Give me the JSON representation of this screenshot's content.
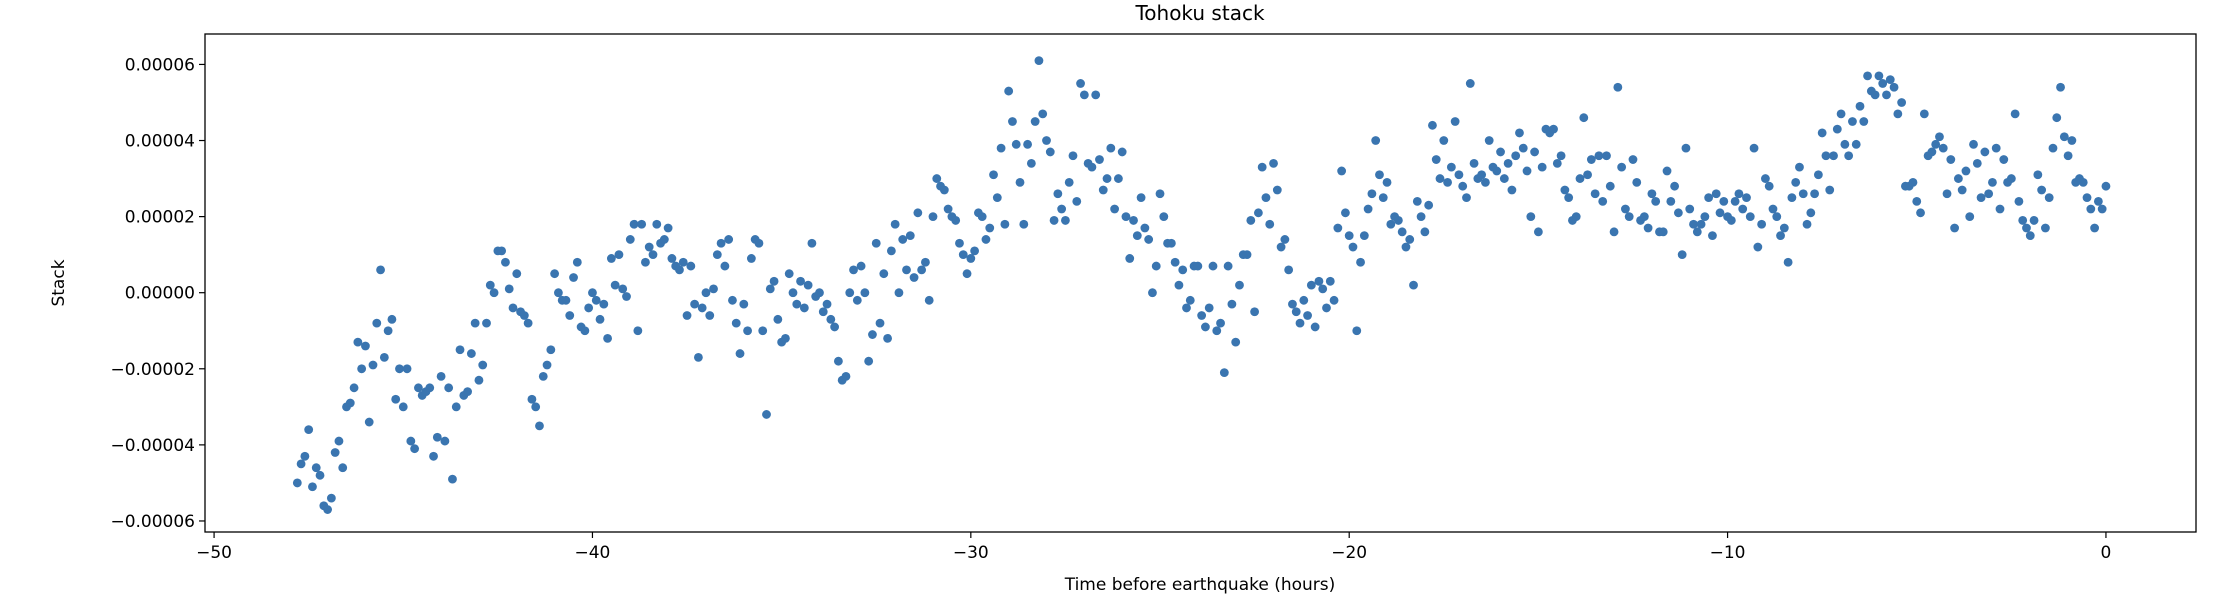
{
  "chart_data": {
    "type": "scatter",
    "title": "Tohoku stack",
    "xlabel": "Time before earthquake (hours)",
    "ylabel": "Stack",
    "xlim": [
      -50.24,
      2.38
    ],
    "ylim": [
      -6.29e-05,
      6.8e-05
    ],
    "grid": false,
    "marker_color": "#3a75b0",
    "x_ticks": [
      -50,
      -40,
      -30,
      -20,
      -10,
      0
    ],
    "x_tick_labels": [
      "−50",
      "−40",
      "−30",
      "−20",
      "−10",
      "0"
    ],
    "y_ticks": [
      6e-05,
      4e-05,
      2e-05,
      0,
      -2e-05,
      -4e-05,
      -6e-05
    ],
    "y_tick_labels": [
      "0.00006",
      "0.00004",
      "0.00002",
      "0.00000",
      "−0.00002",
      "−0.00004",
      "−0.00006"
    ],
    "x": [
      -47.8,
      -47.7,
      -47.6,
      -47.5,
      -47.4,
      -47.3,
      -47.2,
      -47.1,
      -47.0,
      -46.9,
      -46.8,
      -46.7,
      -46.6,
      -46.5,
      -46.4,
      -46.3,
      -46.2,
      -46.1,
      -46.0,
      -45.9,
      -45.8,
      -45.7,
      -45.6,
      -45.5,
      -45.4,
      -45.3,
      -45.2,
      -45.1,
      -45.0,
      -44.9,
      -44.8,
      -44.7,
      -44.6,
      -44.5,
      -44.4,
      -44.3,
      -44.2,
      -44.1,
      -44.0,
      -43.9,
      -43.8,
      -43.7,
      -43.6,
      -43.5,
      -43.4,
      -43.3,
      -43.2,
      -43.1,
      -43.0,
      -42.9,
      -42.8,
      -42.7,
      -42.6,
      -42.5,
      -42.4,
      -42.3,
      -42.2,
      -42.1,
      -42.0,
      -41.9,
      -41.8,
      -41.7,
      -41.6,
      -41.5,
      -41.4,
      -41.3,
      -41.2,
      -41.1,
      -41.0,
      -40.9,
      -40.8,
      -40.7,
      -40.6,
      -40.5,
      -40.4,
      -40.3,
      -40.2,
      -40.1,
      -40.0,
      -39.9,
      -39.8,
      -39.7,
      -39.6,
      -39.5,
      -39.4,
      -39.3,
      -39.2,
      -39.1,
      -39.0,
      -38.9,
      -38.8,
      -38.7,
      -38.6,
      -38.5,
      -38.4,
      -38.3,
      -38.2,
      -38.1,
      -38.0,
      -37.9,
      -37.8,
      -37.7,
      -37.6,
      -37.5,
      -37.4,
      -37.3,
      -37.2,
      -37.1,
      -37.0,
      -36.9,
      -36.8,
      -36.7,
      -36.6,
      -36.5,
      -36.4,
      -36.3,
      -36.2,
      -36.1,
      -36.0,
      -35.9,
      -35.8,
      -35.7,
      -35.6,
      -35.5,
      -35.4,
      -35.3,
      -35.2,
      -35.1,
      -35.0,
      -34.9,
      -34.8,
      -34.7,
      -34.6,
      -34.5,
      -34.4,
      -34.3,
      -34.2,
      -34.1,
      -34.0,
      -33.9,
      -33.8,
      -33.7,
      -33.6,
      -33.5,
      -33.4,
      -33.3,
      -33.2,
      -33.1,
      -33.0,
      -32.9,
      -32.8,
      -32.7,
      -32.6,
      -32.5,
      -32.4,
      -32.3,
      -32.2,
      -32.1,
      -32.0,
      -31.9,
      -31.8,
      -31.7,
      -31.6,
      -31.5,
      -31.4,
      -31.3,
      -31.2,
      -31.1,
      -31.0,
      -30.9,
      -30.8,
      -30.7,
      -30.6,
      -30.5,
      -30.4,
      -30.3,
      -30.2,
      -30.1,
      -30.0,
      -29.9,
      -29.8,
      -29.7,
      -29.6,
      -29.5,
      -29.4,
      -29.3,
      -29.2,
      -29.1,
      -29.0,
      -28.9,
      -28.8,
      -28.7,
      -28.6,
      -28.5,
      -28.4,
      -28.3,
      -28.2,
      -28.1,
      -28.0,
      -27.9,
      -27.8,
      -27.7,
      -27.6,
      -27.5,
      -27.4,
      -27.3,
      -27.2,
      -27.1,
      -27.0,
      -26.9,
      -26.8,
      -26.7,
      -26.6,
      -26.5,
      -26.4,
      -26.3,
      -26.2,
      -26.1,
      -26.0,
      -25.9,
      -25.8,
      -25.7,
      -25.6,
      -25.5,
      -25.4,
      -25.3,
      -25.2,
      -25.1,
      -25.0,
      -24.9,
      -24.8,
      -24.7,
      -24.6,
      -24.5,
      -24.4,
      -24.3,
      -24.2,
      -24.1,
      -24.0,
      -23.9,
      -23.8,
      -23.7,
      -23.6,
      -23.5,
      -23.4,
      -23.3,
      -23.2,
      -23.1,
      -23.0,
      -22.9,
      -22.8,
      -22.7,
      -22.6,
      -22.5,
      -22.4,
      -22.3,
      -22.2,
      -22.1,
      -22.0,
      -21.9,
      -21.8,
      -21.7,
      -21.6,
      -21.5,
      -21.4,
      -21.3,
      -21.2,
      -21.1,
      -21.0,
      -20.9,
      -20.8,
      -20.7,
      -20.6,
      -20.5,
      -20.4,
      -20.3,
      -20.2,
      -20.1,
      -20.0,
      -19.9,
      -19.8,
      -19.7,
      -19.6,
      -19.5,
      -19.4,
      -19.3,
      -19.2,
      -19.1,
      -19.0,
      -18.9,
      -18.8,
      -18.7,
      -18.6,
      -18.5,
      -18.4,
      -18.3,
      -18.2,
      -18.1,
      -18.0,
      -17.9,
      -17.8,
      -17.7,
      -17.6,
      -17.5,
      -17.4,
      -17.3,
      -17.2,
      -17.1,
      -17.0,
      -16.9,
      -16.8,
      -16.7,
      -16.6,
      -16.5,
      -16.4,
      -16.3,
      -16.2,
      -16.1,
      -16.0,
      -15.9,
      -15.8,
      -15.7,
      -15.6,
      -15.5,
      -15.4,
      -15.3,
      -15.2,
      -15.1,
      -15.0,
      -14.9,
      -14.8,
      -14.7,
      -14.6,
      -14.5,
      -14.4,
      -14.3,
      -14.2,
      -14.1,
      -14.0,
      -13.9,
      -13.8,
      -13.7,
      -13.6,
      -13.5,
      -13.4,
      -13.3,
      -13.2,
      -13.1,
      -13.0,
      -12.9,
      -12.8,
      -12.7,
      -12.6,
      -12.5,
      -12.4,
      -12.3,
      -12.2,
      -12.1,
      -12.0,
      -11.9,
      -11.8,
      -11.7,
      -11.6,
      -11.5,
      -11.4,
      -11.3,
      -11.2,
      -11.1,
      -11.0,
      -10.9,
      -10.8,
      -10.7,
      -10.6,
      -10.5,
      -10.4,
      -10.3,
      -10.2,
      -10.1,
      -10.0,
      -9.9,
      -9.8,
      -9.7,
      -9.6,
      -9.5,
      -9.4,
      -9.3,
      -9.2,
      -9.1,
      -9.0,
      -8.9,
      -8.8,
      -8.7,
      -8.6,
      -8.5,
      -8.4,
      -8.3,
      -8.2,
      -8.1,
      -8.0,
      -7.9,
      -7.8,
      -7.7,
      -7.6,
      -7.5,
      -7.4,
      -7.3,
      -7.2,
      -7.1,
      -7.0,
      -6.9,
      -6.8,
      -6.7,
      -6.6,
      -6.5,
      -6.4,
      -6.3,
      -6.2,
      -6.1,
      -6.0,
      -5.9,
      -5.8,
      -5.7,
      -5.6,
      -5.5,
      -5.4,
      -5.3,
      -5.2,
      -5.1,
      -5.0,
      -4.9,
      -4.8,
      -4.7,
      -4.6,
      -4.5,
      -4.4,
      -4.3,
      -4.2,
      -4.1,
      -4.0,
      -3.9,
      -3.8,
      -3.7,
      -3.6,
      -3.5,
      -3.4,
      -3.3,
      -3.2,
      -3.1,
      -3.0,
      -2.9,
      -2.8,
      -2.7,
      -2.6,
      -2.5,
      -2.4,
      -2.3,
      -2.2,
      -2.1,
      -2.0,
      -1.9,
      -1.8,
      -1.7,
      -1.6,
      -1.5,
      -1.4,
      -1.3,
      -1.2,
      -1.1,
      -1.0,
      -0.9,
      -0.8,
      -0.7,
      -0.6,
      -0.5,
      -0.4,
      -0.3,
      -0.2,
      -0.1,
      0.0
    ],
    "y": [
      -5e-05,
      -4.5e-05,
      -4.3e-05,
      -3.6e-05,
      -5.1e-05,
      -4.6e-05,
      -4.8e-05,
      -5.6e-05,
      -5.7e-05,
      -5.4e-05,
      -4.2e-05,
      -3.9e-05,
      -4.6e-05,
      -3e-05,
      -2.9e-05,
      -2.5e-05,
      -1.3e-05,
      -2e-05,
      -1.4e-05,
      -3.4e-05,
      -1.9e-05,
      -8e-06,
      6e-06,
      -1.7e-05,
      -1e-05,
      -7e-06,
      -2.8e-05,
      -2e-05,
      -3e-05,
      -2e-05,
      -3.9e-05,
      -4.1e-05,
      -2.5e-05,
      -2.7e-05,
      -2.6e-05,
      -2.5e-05,
      -4.3e-05,
      -3.8e-05,
      -2.2e-05,
      -3.9e-05,
      -2.5e-05,
      -4.9e-05,
      -3e-05,
      -1.5e-05,
      -2.7e-05,
      -2.6e-05,
      -1.6e-05,
      -8e-06,
      -2.3e-05,
      -1.9e-05,
      -8e-06,
      2e-06,
      0.0,
      1.1e-05,
      1.1e-05,
      8e-06,
      1e-06,
      -4e-06,
      5e-06,
      -5e-06,
      -6e-06,
      -8e-06,
      -2.8e-05,
      -3e-05,
      -3.5e-05,
      -2.2e-05,
      -1.9e-05,
      -1.5e-05,
      5e-06,
      0.0,
      -2e-06,
      -2e-06,
      -6e-06,
      4e-06,
      8e-06,
      -9e-06,
      -1e-05,
      -4e-06,
      0.0,
      -2e-06,
      -7e-06,
      -3e-06,
      -1.2e-05,
      9e-06,
      2e-06,
      1e-05,
      1e-06,
      -1e-06,
      1.4e-05,
      1.8e-05,
      -1e-05,
      1.8e-05,
      8e-06,
      1.2e-05,
      1e-05,
      1.8e-05,
      1.3e-05,
      1.4e-05,
      1.7e-05,
      9e-06,
      7e-06,
      6e-06,
      8e-06,
      -6e-06,
      7e-06,
      -3e-06,
      -1.7e-05,
      -4e-06,
      0.0,
      -6e-06,
      1e-06,
      1e-05,
      1.3e-05,
      7e-06,
      1.4e-05,
      -2e-06,
      -8e-06,
      -1.6e-05,
      -3e-06,
      -1e-05,
      9e-06,
      1.4e-05,
      1.3e-05,
      -1e-05,
      -3.2e-05,
      1e-06,
      3e-06,
      -7e-06,
      -1.3e-05,
      -1.2e-05,
      5e-06,
      0.0,
      -3e-06,
      3e-06,
      -4e-06,
      2e-06,
      1.3e-05,
      -1e-06,
      0.0,
      -5e-06,
      -3e-06,
      -7e-06,
      -9e-06,
      -1.8e-05,
      -2.3e-05,
      -2.2e-05,
      0.0,
      6e-06,
      -2e-06,
      7e-06,
      0.0,
      -1.8e-05,
      -1.1e-05,
      1.3e-05,
      -8e-06,
      5e-06,
      -1.2e-05,
      1.1e-05,
      1.8e-05,
      0.0,
      1.4e-05,
      6e-06,
      1.5e-05,
      4e-06,
      2.1e-05,
      6e-06,
      8e-06,
      -2e-06,
      2e-05,
      3e-05,
      2.8e-05,
      2.7e-05,
      2.2e-05,
      2e-05,
      1.9e-05,
      1.3e-05,
      1e-05,
      5e-06,
      9e-06,
      1.1e-05,
      2.1e-05,
      2e-05,
      1.4e-05,
      1.7e-05,
      3.1e-05,
      2.5e-05,
      3.8e-05,
      1.8e-05,
      5.3e-05,
      4.5e-05,
      3.9e-05,
      2.9e-05,
      1.8e-05,
      3.9e-05,
      3.4e-05,
      4.5e-05,
      6.1e-05,
      4.7e-05,
      4e-05,
      3.7e-05,
      1.9e-05,
      2.6e-05,
      2.2e-05,
      1.9e-05,
      2.9e-05,
      3.6e-05,
      2.4e-05,
      5.5e-05,
      5.2e-05,
      3.4e-05,
      3.3e-05,
      5.2e-05,
      3.5e-05,
      2.7e-05,
      3e-05,
      3.8e-05,
      2.2e-05,
      3e-05,
      3.7e-05,
      2e-05,
      9e-06,
      1.9e-05,
      1.5e-05,
      2.5e-05,
      1.7e-05,
      1.4e-05,
      0.0,
      7e-06,
      2.6e-05,
      2e-05,
      1.3e-05,
      1.3e-05,
      8e-06,
      2e-06,
      6e-06,
      -4e-06,
      -2e-06,
      7e-06,
      7e-06,
      -6e-06,
      -9e-06,
      -4e-06,
      7e-06,
      -1e-05,
      -8e-06,
      -2.1e-05,
      7e-06,
      -3e-06,
      -1.3e-05,
      2e-06,
      1e-05,
      1e-05,
      1.9e-05,
      -5e-06,
      2.1e-05,
      3.3e-05,
      2.5e-05,
      1.8e-05,
      3.4e-05,
      2.7e-05,
      1.2e-05,
      1.4e-05,
      6e-06,
      -3e-06,
      -5e-06,
      -8e-06,
      -2e-06,
      -6e-06,
      2e-06,
      -9e-06,
      3e-06,
      1e-06,
      -4e-06,
      3e-06,
      -2e-06,
      1.7e-05,
      3.2e-05,
      2.1e-05,
      1.5e-05,
      1.2e-05,
      -1e-05,
      8e-06,
      1.5e-05,
      2.2e-05,
      2.6e-05,
      4e-05,
      3.1e-05,
      2.5e-05,
      2.9e-05,
      1.8e-05,
      2e-05,
      1.9e-05,
      1.6e-05,
      1.2e-05,
      1.4e-05,
      2e-06,
      2.4e-05,
      2e-05,
      1.6e-05,
      2.3e-05,
      4.4e-05,
      3.5e-05,
      3e-05,
      4e-05,
      2.9e-05,
      3.3e-05,
      4.5e-05,
      3.1e-05,
      2.8e-05,
      2.5e-05,
      5.5e-05,
      3.4e-05,
      3e-05,
      3.1e-05,
      2.9e-05,
      4e-05,
      3.3e-05,
      3.2e-05,
      3.7e-05,
      3e-05,
      3.4e-05,
      2.7e-05,
      3.6e-05,
      4.2e-05,
      3.8e-05,
      3.2e-05,
      2e-05,
      3.7e-05,
      1.6e-05,
      3.3e-05,
      4.3e-05,
      4.2e-05,
      4.3e-05,
      3.4e-05,
      3.6e-05,
      2.7e-05,
      2.5e-05,
      1.9e-05,
      2e-05,
      3e-05,
      4.6e-05,
      3.1e-05,
      3.5e-05,
      2.6e-05,
      3.6e-05,
      2.4e-05,
      3.6e-05,
      2.8e-05,
      1.6e-05,
      5.4e-05,
      3.3e-05,
      2.2e-05,
      2e-05,
      3.5e-05,
      2.9e-05,
      1.9e-05,
      2e-05,
      1.7e-05,
      2.6e-05,
      2.4e-05,
      1.6e-05,
      1.6e-05,
      3.2e-05,
      2.4e-05,
      2.8e-05,
      2.1e-05,
      1e-05,
      3.8e-05,
      2.2e-05,
      1.8e-05,
      1.6e-05,
      1.8e-05,
      2e-05,
      2.5e-05,
      1.5e-05,
      2.6e-05,
      2.1e-05,
      2.4e-05,
      2e-05,
      1.9e-05,
      2.4e-05,
      2.6e-05,
      2.2e-05,
      2.5e-05,
      2e-05,
      3.8e-05,
      1.2e-05,
      1.8e-05,
      3e-05,
      2.8e-05,
      2.2e-05,
      2e-05,
      1.5e-05,
      1.7e-05,
      8e-06,
      2.5e-05,
      2.9e-05,
      3.3e-05,
      2.6e-05,
      1.8e-05,
      2.1e-05,
      2.6e-05,
      3.1e-05,
      4.2e-05,
      3.6e-05,
      2.7e-05,
      3.6e-05,
      4.3e-05,
      4.7e-05,
      3.9e-05,
      3.6e-05,
      4.5e-05,
      3.9e-05,
      4.9e-05,
      4.5e-05,
      5.7e-05,
      5.3e-05,
      5.2e-05,
      5.7e-05,
      5.5e-05,
      5.2e-05,
      5.6e-05,
      5.4e-05,
      4.7e-05,
      5e-05,
      2.8e-05,
      2.8e-05,
      2.9e-05,
      2.4e-05,
      2.1e-05,
      4.7e-05,
      3.6e-05,
      3.7e-05,
      3.9e-05,
      4.1e-05,
      3.8e-05,
      2.6e-05,
      3.5e-05,
      1.7e-05,
      3e-05,
      2.7e-05,
      3.2e-05,
      2e-05,
      3.9e-05,
      3.4e-05,
      2.5e-05,
      3.7e-05,
      2.6e-05,
      2.9e-05,
      3.8e-05,
      2.2e-05,
      3.5e-05,
      2.9e-05,
      3e-05,
      4.7e-05,
      2.4e-05,
      1.9e-05,
      1.7e-05,
      1.5e-05,
      1.9e-05,
      3.1e-05,
      2.7e-05,
      1.7e-05,
      2.5e-05,
      3.8e-05,
      4.6e-05,
      5.4e-05,
      4.1e-05,
      3.6e-05,
      4e-05,
      2.9e-05,
      3e-05,
      2.9e-05,
      2.5e-05,
      2.2e-05,
      1.7e-05,
      2.4e-05,
      2.2e-05,
      2.8e-05
    ]
  }
}
